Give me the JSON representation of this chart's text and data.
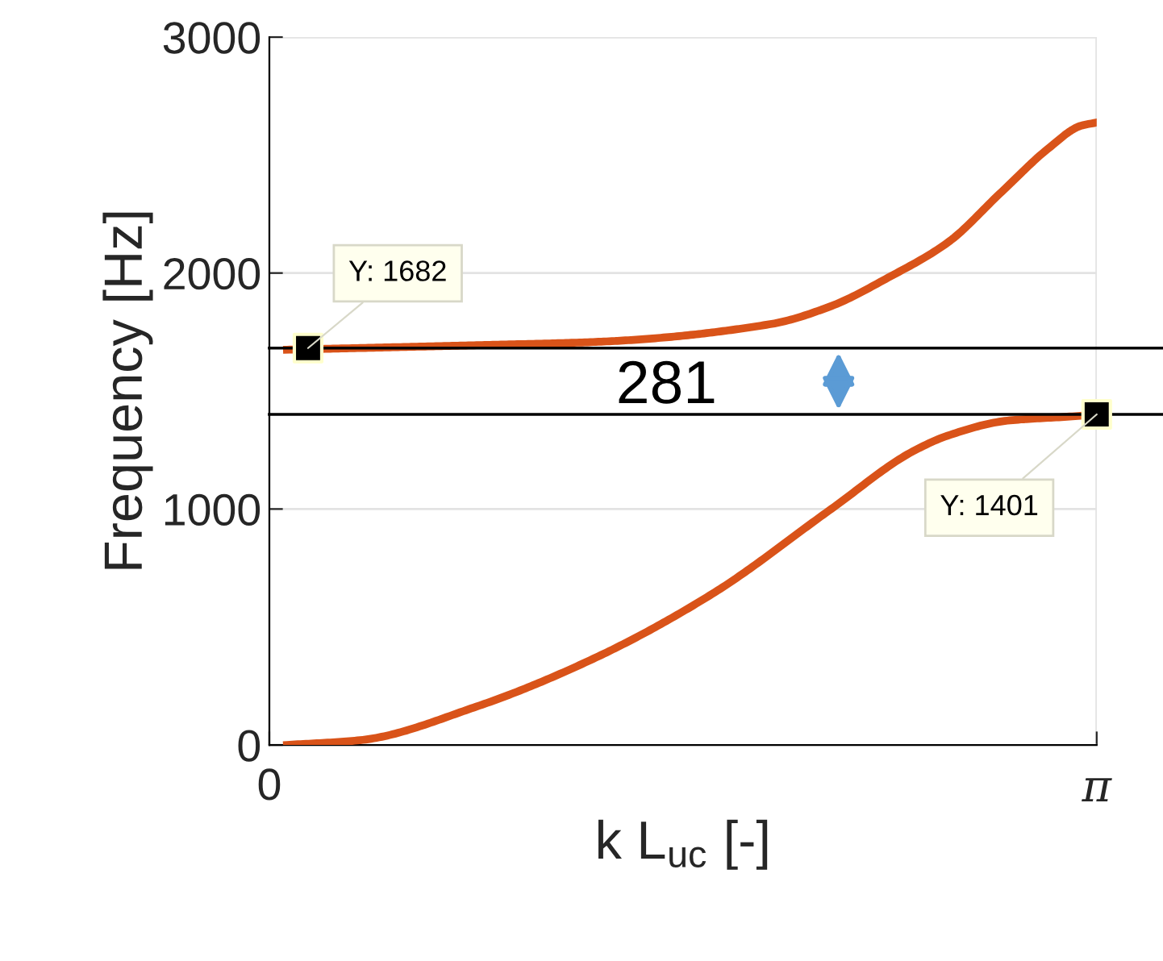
{
  "chart_data": {
    "type": "line",
    "xlabel": "k L$_{uc}$ [-]",
    "ylabel": "Frequency [Hz]",
    "xlim": [
      0,
      3.1416
    ],
    "ylim": [
      0,
      3000
    ],
    "xticks": [
      {
        "value": 0,
        "label": "0"
      },
      {
        "value": 3.1416,
        "label": "π"
      }
    ],
    "yticks": [
      0,
      1000,
      2000,
      3000
    ],
    "grid": true,
    "series": [
      {
        "color": "#d95319",
        "x": [
          0.067,
          0.815,
          1.237,
          1.905,
          2.131,
          2.352,
          2.579,
          2.774,
          2.958,
          3.081,
          3.1416
        ],
        "values": [
          1675,
          1695,
          1708,
          1784,
          1859,
          1982,
          2132,
          2337,
          2528,
          2624,
          2638
        ]
      },
      {
        "color": "#d95319",
        "x": [
          0.067,
          0.343,
          0.79,
          1.237,
          1.684,
          2.131,
          2.443,
          2.579,
          2.799,
          3.068,
          3.1416
        ],
        "values": [
          0,
          20,
          164,
          369,
          642,
          998,
          1244,
          1312,
          1374,
          1394,
          1401
        ]
      },
      {
        "type": "scatter",
        "marker": "square",
        "color": "#000000",
        "x": [
          0.147,
          3.1416
        ],
        "values": [
          1682,
          1401
        ]
      }
    ],
    "ref_lines": [
      {
        "axis": "y",
        "value": 1682,
        "color": "#000000"
      },
      {
        "axis": "y",
        "value": 1401,
        "color": "#000000"
      }
    ],
    "annotations": [
      {
        "text": "Y: 1682",
        "x": 0.147,
        "y": 1682
      },
      {
        "text": "Y: 1401",
        "x": 3.1416,
        "y": 1401
      },
      "281"
    ]
  }
}
